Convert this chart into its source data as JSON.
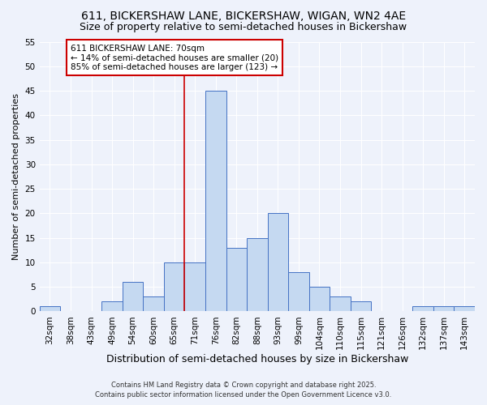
{
  "title": "611, BICKERSHAW LANE, BICKERSHAW, WIGAN, WN2 4AE",
  "subtitle": "Size of property relative to semi-detached houses in Bickershaw",
  "xlabel": "Distribution of semi-detached houses by size in Bickershaw",
  "ylabel": "Number of semi-detached properties",
  "bar_labels": [
    "32sqm",
    "38sqm",
    "43sqm",
    "49sqm",
    "54sqm",
    "60sqm",
    "65sqm",
    "71sqm",
    "76sqm",
    "82sqm",
    "88sqm",
    "93sqm",
    "99sqm",
    "104sqm",
    "110sqm",
    "115sqm",
    "121sqm",
    "126sqm",
    "132sqm",
    "137sqm",
    "143sqm"
  ],
  "bar_values": [
    1,
    0,
    0,
    2,
    6,
    3,
    10,
    10,
    45,
    13,
    15,
    20,
    8,
    5,
    3,
    2,
    0,
    0,
    1,
    1,
    1
  ],
  "bar_color": "#c5d9f1",
  "bar_edge_color": "#4472c4",
  "ylim": [
    0,
    55
  ],
  "yticks": [
    0,
    5,
    10,
    15,
    20,
    25,
    30,
    35,
    40,
    45,
    50,
    55
  ],
  "vline_x_idx": 7,
  "vline_color": "#cc0000",
  "annotation_title": "611 BICKERSHAW LANE: 70sqm",
  "annotation_line1": "← 14% of semi-detached houses are smaller (20)",
  "annotation_line2": "85% of semi-detached houses are larger (123) →",
  "annotation_box_color": "#ffffff",
  "annotation_box_edge": "#cc0000",
  "footer1": "Contains HM Land Registry data © Crown copyright and database right 2025.",
  "footer2": "Contains public sector information licensed under the Open Government Licence v3.0.",
  "bg_color": "#eef2fb",
  "title_fontsize": 10,
  "subtitle_fontsize": 9,
  "xlabel_fontsize": 9,
  "ylabel_fontsize": 8,
  "tick_fontsize": 7.5,
  "annotation_fontsize": 7.5,
  "footer_fontsize": 6
}
